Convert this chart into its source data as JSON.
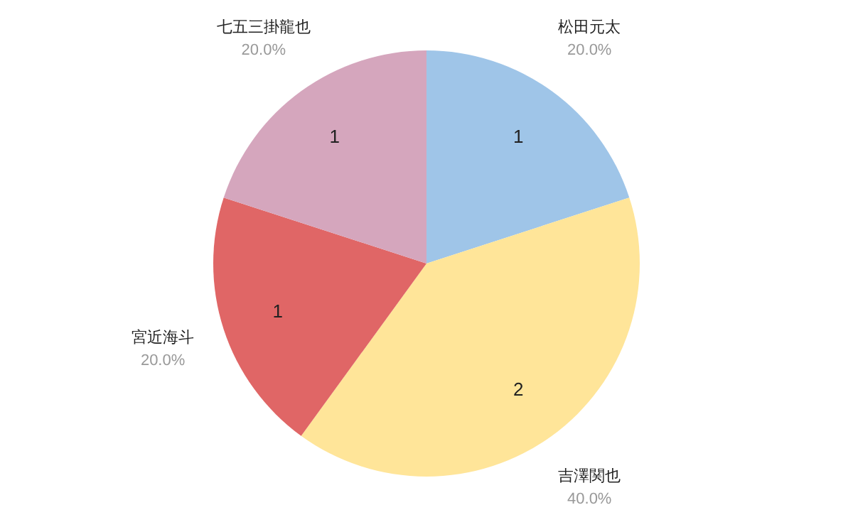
{
  "chart_data": {
    "type": "pie",
    "categories": [
      "松田元太",
      "吉澤関也",
      "宮近海斗",
      "七五三掛龍也"
    ],
    "values": [
      1,
      2,
      1,
      1
    ],
    "colors": [
      "#9fc5e8",
      "#ffe599",
      "#e06666",
      "#d5a6bd"
    ],
    "data_labels": true,
    "annotations": [
      {
        "text": "20.0%",
        "x": "松田元太"
      },
      {
        "text": "40.0%",
        "x": "吉澤関也"
      },
      {
        "text": "20.0%",
        "x": "宮近海斗"
      },
      {
        "text": "20.0%",
        "x": "七五三掛龍也"
      }
    ]
  }
}
